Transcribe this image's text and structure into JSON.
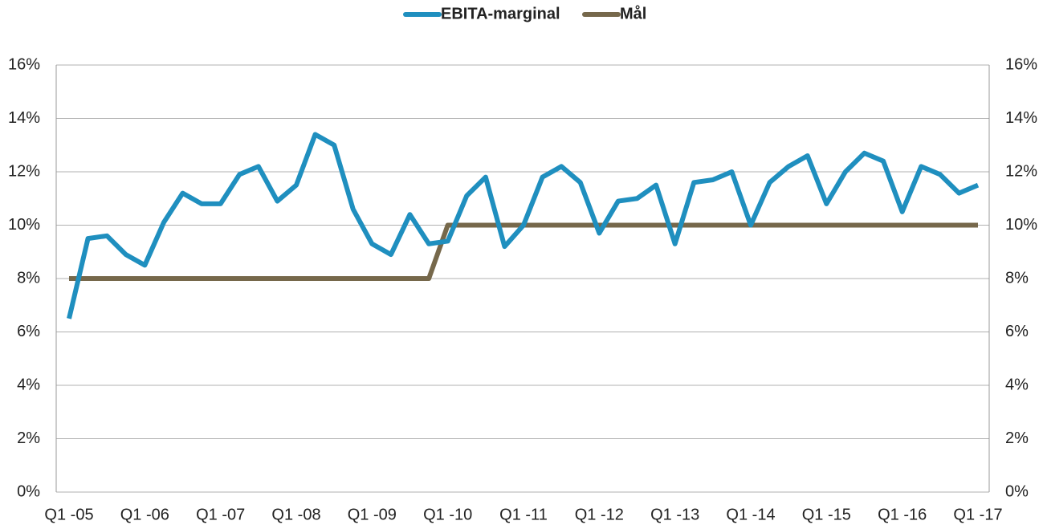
{
  "chart_data": {
    "type": "line",
    "categories": [
      "Q1 -05",
      null,
      null,
      null,
      "Q1 -06",
      null,
      null,
      null,
      "Q1 -07",
      null,
      null,
      null,
      "Q1 -08",
      null,
      null,
      null,
      "Q1 -09",
      null,
      null,
      null,
      "Q1 -10",
      null,
      null,
      null,
      "Q1 -11",
      null,
      null,
      null,
      "Q1 -12",
      null,
      null,
      null,
      "Q1 -13",
      null,
      null,
      null,
      "Q1 -14",
      null,
      null,
      null,
      "Q1 -15",
      null,
      null,
      null,
      "Q1 -16",
      null,
      null,
      null,
      "Q1 -17"
    ],
    "series": [
      {
        "name": "EBITA-marginal",
        "color": "#1f8fbf",
        "values": [
          6.5,
          9.5,
          9.6,
          8.9,
          8.5,
          10.1,
          11.2,
          10.8,
          10.8,
          11.9,
          12.2,
          10.9,
          11.5,
          13.4,
          13.0,
          10.6,
          9.3,
          8.9,
          10.4,
          9.3,
          9.4,
          11.1,
          11.8,
          9.2,
          10.0,
          11.8,
          12.2,
          11.6,
          9.7,
          10.9,
          11.0,
          11.5,
          9.3,
          11.6,
          11.7,
          12.0,
          10.0,
          11.6,
          12.2,
          12.6,
          10.8,
          12.0,
          12.7,
          12.4,
          10.5,
          12.2,
          11.9,
          11.2,
          11.5
        ]
      },
      {
        "name": "Mål",
        "color": "#76684b",
        "values": [
          8,
          8,
          8,
          8,
          8,
          8,
          8,
          8,
          8,
          8,
          8,
          8,
          8,
          8,
          8,
          8,
          8,
          8,
          8,
          8,
          10,
          10,
          10,
          10,
          10,
          10,
          10,
          10,
          10,
          10,
          10,
          10,
          10,
          10,
          10,
          10,
          10,
          10,
          10,
          10,
          10,
          10,
          10,
          10,
          10,
          10,
          10,
          10,
          10
        ]
      }
    ],
    "ylim": [
      0,
      16
    ],
    "yticks": [
      {
        "value": 0,
        "label": "0%"
      },
      {
        "value": 2,
        "label": "2%"
      },
      {
        "value": 4,
        "label": "4%"
      },
      {
        "value": 6,
        "label": "6%"
      },
      {
        "value": 8,
        "label": "8%"
      },
      {
        "value": 10,
        "label": "10%"
      },
      {
        "value": 12,
        "label": "12%"
      },
      {
        "value": 14,
        "label": "14%"
      },
      {
        "value": 16,
        "label": "16%"
      }
    ],
    "y2lim": [
      0,
      16
    ],
    "y2ticks": [
      {
        "value": 0,
        "label": "0%"
      },
      {
        "value": 2,
        "label": "2%"
      },
      {
        "value": 4,
        "label": "4%"
      },
      {
        "value": 6,
        "label": "6%"
      },
      {
        "value": 8,
        "label": "8%"
      },
      {
        "value": 10,
        "label": "10%"
      },
      {
        "value": 12,
        "label": "12%"
      },
      {
        "value": 14,
        "label": "14%"
      },
      {
        "value": 16,
        "label": "16%"
      }
    ],
    "grid": true,
    "legend": "top"
  }
}
